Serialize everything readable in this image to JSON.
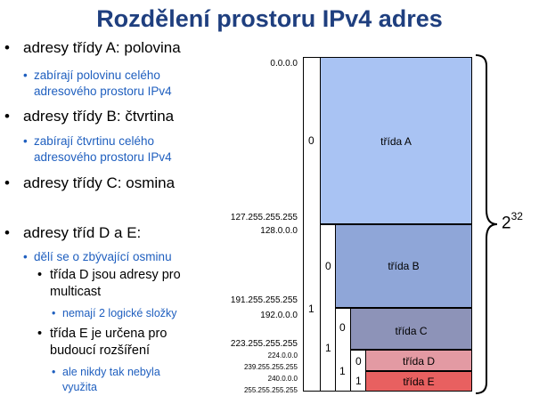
{
  "title": "Rozdělení prostoru IPv4 adres",
  "bullets": {
    "a": "adresy třídy A: polovina",
    "a_sub1": "zabírají polovinu celého",
    "a_sub2": "adresového prostoru IPv4",
    "b": "adresy třídy B: čtvrtina",
    "b_sub1": "zabírají čtvrtinu celého",
    "b_sub2": "adresového prostoru IPv4",
    "c": "adresy třídy C: osmina",
    "de": "adresy tříd D a E:",
    "de_sub": "dělí se o zbývající osminu",
    "d1": "třída D jsou adresy pro",
    "d2": "multicast",
    "d_sub": "nemají 2 logické složky",
    "e1": "třída E je určena pro",
    "e2": "budoucí rozšíření",
    "e_sub1": "ale nikdy tak nebyla",
    "e_sub2": "využita"
  },
  "diagram": {
    "addresses": {
      "a0": "0.0.0.0",
      "a1": "127.255.255.255",
      "b0": "128.0.0.0",
      "b1": "191.255.255.255",
      "c0": "192.0.0.0",
      "c1": "223.255.255.255",
      "d0": "224.0.0.0",
      "d1": "239.255.255.255",
      "e0": "240.0.0.0",
      "e1": "255.255.255.255"
    },
    "classes": {
      "a": "třída A",
      "b": "třída B",
      "c": "třída C",
      "d": "třída D",
      "e": "třída E"
    },
    "bits": {
      "a": "0",
      "b_top": "1",
      "b": "0",
      "c_top": "1",
      "c": "0",
      "d_top": "1",
      "d": "0",
      "e": "1"
    },
    "total_base": "2",
    "total_exp": "32",
    "colors": {
      "a": "#a9c3f3",
      "b": "#8fa6d8",
      "c": "#8d93b8",
      "d": "#e39aa3",
      "e": "#e86060"
    }
  }
}
